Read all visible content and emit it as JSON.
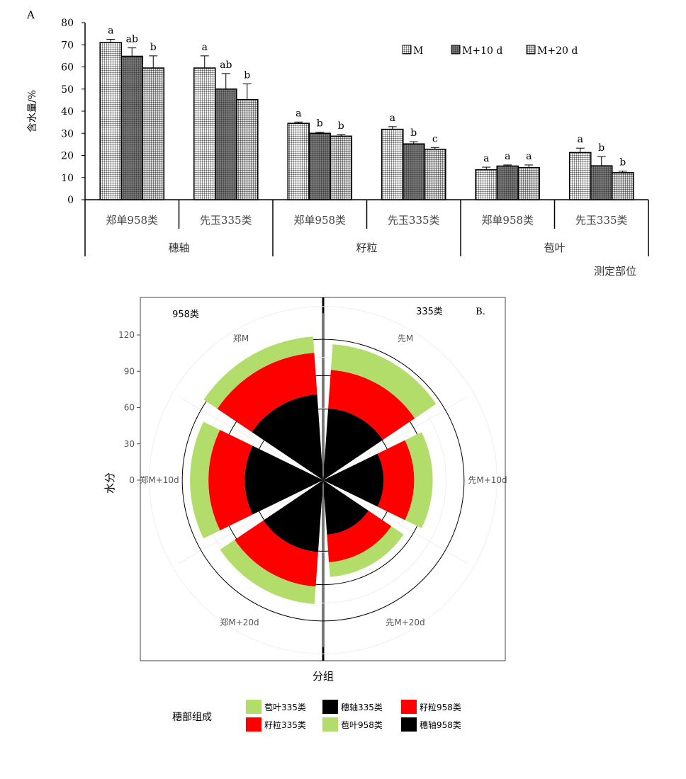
{
  "panel_a": {
    "letter": "A",
    "chart_data": {
      "type": "bar",
      "ylabel": "含水量/%",
      "xlabel": "测定部位",
      "ylim": [
        0,
        80
      ],
      "yticks": [
        0,
        10,
        20,
        30,
        40,
        50,
        60,
        70,
        80
      ],
      "groups": [
        "郑单958类",
        "先玉335类",
        "郑单958类",
        "先玉335类",
        "郑单958类",
        "先玉335类"
      ],
      "parts": [
        "穗轴",
        "籽粒",
        "苞叶"
      ],
      "series": [
        {
          "name": "M",
          "values": [
            71,
            59.5,
            34.5,
            31.8,
            13.5,
            21.3
          ],
          "errors": [
            1.5,
            5.5,
            0.6,
            1.2,
            1.2,
            2.0
          ],
          "letters": [
            "a",
            "a",
            "a",
            "a",
            "a",
            "a"
          ]
        },
        {
          "name": "M+10 d",
          "values": [
            64.8,
            50.0,
            30.0,
            25.2,
            15.2,
            15.3
          ],
          "errors": [
            3.8,
            7.0,
            0.5,
            1.0,
            0.5,
            4.2
          ],
          "letters": [
            "ab",
            "ab",
            "b",
            "b",
            "a",
            "b"
          ]
        },
        {
          "name": "M+20 d",
          "values": [
            59.5,
            45.2,
            28.7,
            22.8,
            14.5,
            12.2
          ],
          "errors": [
            5.5,
            7.2,
            0.8,
            0.8,
            1.2,
            0.7
          ],
          "letters": [
            "b",
            "b",
            "b",
            "c",
            "a",
            "b"
          ]
        }
      ]
    }
  },
  "panel_b": {
    "letter": "B.",
    "chart_data": {
      "type": "stacked-polar-bar",
      "ylabel": "水分",
      "xlabel": "分组",
      "radial_ticks": [
        0,
        30,
        60,
        90,
        120
      ],
      "left_title": "958类",
      "right_title": "335类",
      "categories": [
        "郑M",
        "郑M+10d",
        "郑M+20d",
        "先M",
        "先M+10d",
        "先M+20d"
      ],
      "stacks": {
        "郑M": {
          "穗轴": 71,
          "籽粒": 34.5,
          "苞叶": 13.5
        },
        "郑M+10d": {
          "穗轴": 64.8,
          "籽粒": 30.0,
          "苞叶": 15.2
        },
        "郑M+20d": {
          "穗轴": 59.5,
          "籽粒": 28.7,
          "苞叶": 14.5
        },
        "先M": {
          "穗轴": 59.5,
          "籽粒": 31.8,
          "苞叶": 21.3
        },
        "先M+10d": {
          "穗轴": 50.0,
          "籽粒": 25.2,
          "苞叶": 15.3
        },
        "先M+20d": {
          "穗轴": 45.2,
          "籽粒": 22.8,
          "苞叶": 12.2
        }
      },
      "legend_title": "穗部组成",
      "legend": [
        {
          "label": "苞叶335类",
          "color": "#b3dd6a"
        },
        {
          "label": "穗轴335类",
          "color": "#000000"
        },
        {
          "label": "籽粒958类",
          "color": "#ff0000"
        },
        {
          "label": "籽粒335类",
          "color": "#ff0000"
        },
        {
          "label": "苞叶958类",
          "color": "#b3dd6a"
        },
        {
          "label": "穗轴958类",
          "color": "#000000"
        }
      ],
      "colors": {
        "穗轴": "#000000",
        "籽粒": "#ff0000",
        "苞叶": "#b3dd6a"
      }
    }
  }
}
